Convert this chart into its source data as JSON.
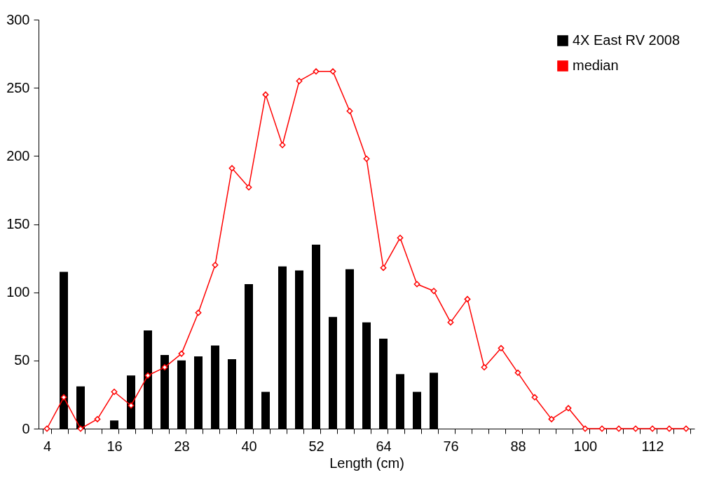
{
  "chart_data": {
    "type": "bar",
    "xlabel": "Length (cm)",
    "categories": [
      "4",
      null,
      null,
      null,
      "16",
      null,
      null,
      null,
      "28",
      null,
      null,
      null,
      "40",
      null,
      null,
      null,
      "52",
      null,
      null,
      null,
      "64",
      null,
      null,
      null,
      "76",
      null,
      null,
      null,
      "88",
      null,
      null,
      null,
      "100",
      null,
      null,
      null,
      "112",
      null,
      null
    ],
    "series": [
      {
        "name": "4X East RV 2008",
        "color": "#000000",
        "values": [
          null,
          115,
          31,
          null,
          6,
          39,
          72,
          54,
          50,
          53,
          61,
          51,
          106,
          27,
          119,
          116,
          135,
          82,
          117,
          78,
          66,
          40,
          27,
          41,
          null,
          null,
          null,
          null,
          null,
          null,
          null,
          null,
          null,
          null,
          null,
          null,
          null,
          null,
          null
        ]
      },
      {
        "name": "median",
        "type": "line",
        "color": "#ff0000",
        "values": [
          0,
          23,
          0,
          7,
          27,
          17,
          39,
          45,
          55,
          85,
          120,
          191,
          177,
          245,
          208,
          255,
          262,
          262,
          233,
          198,
          118,
          140,
          106,
          101,
          78,
          95,
          45,
          59,
          41,
          23,
          7,
          15,
          0,
          0,
          0,
          0,
          0,
          0,
          0
        ]
      }
    ],
    "ylim": [
      0,
      300
    ],
    "yticks": [
      0,
      50,
      100,
      150,
      200,
      250,
      300
    ],
    "legend": "top right",
    "marker": "diamond",
    "line_style": "solid"
  }
}
